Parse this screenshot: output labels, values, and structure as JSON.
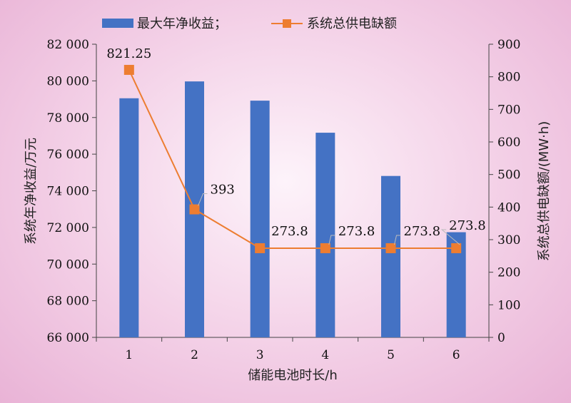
{
  "chart_data": {
    "type": "bar+line",
    "categories": [
      "1",
      "2",
      "3",
      "4",
      "5",
      "6"
    ],
    "series": [
      {
        "name": "最大年净收益；",
        "type": "bar",
        "axis": "left",
        "color": "#4472c4",
        "values": [
          79050,
          79970,
          78920,
          77170,
          74810,
          71740
        ]
      },
      {
        "name": "系统总供电缺额",
        "type": "line",
        "axis": "right",
        "color": "#ed7d31",
        "values": [
          821.25,
          393,
          273.8,
          273.8,
          273.8,
          273.8
        ],
        "labels": [
          "821.25",
          "393",
          "273.8",
          "273.8",
          "273.8",
          "273.8"
        ]
      }
    ],
    "xlabel": "储能电池时长/h",
    "ylabel_left": "系统年净收益/万元",
    "ylabel_right": "系统总供电缺额/(MW·h)",
    "ylim_left": [
      66000,
      82000
    ],
    "ylim_right": [
      0,
      900
    ],
    "yticks_left": [
      "66 000",
      "68 000",
      "70 000",
      "72 000",
      "74 000",
      "76 000",
      "78 000",
      "80 000",
      "82 000"
    ],
    "yticks_right": [
      "0",
      "100",
      "200",
      "300",
      "400",
      "500",
      "600",
      "700",
      "800",
      "900"
    ],
    "grid": false,
    "legend_position": "top"
  }
}
